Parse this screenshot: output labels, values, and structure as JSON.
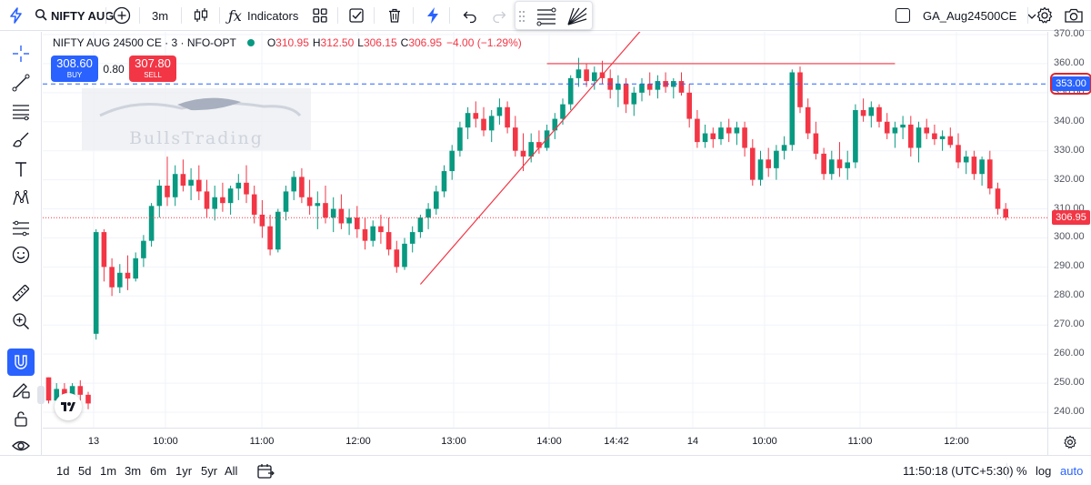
{
  "toolbar": {
    "symbol": "NIFTY AUG",
    "interval": "3m",
    "indicators_label": "Indicators",
    "layout_name": "GA_Aug24500CE"
  },
  "legend": {
    "symbol_text": "NIFTY AUG 24500 CE · 3 · NFO-OPT",
    "open_label": "O",
    "open": "310.95",
    "high_label": "H",
    "high": "312.50",
    "low_label": "L",
    "low": "306.15",
    "close_label": "C",
    "close": "306.95",
    "change": "−4.00 (−1.29%)"
  },
  "trade_panel": {
    "buy_price": "308.60",
    "buy_label": "BUY",
    "spread": "0.80",
    "sell_price": "307.80",
    "sell_label": "SELL"
  },
  "watermark": {
    "text": "BullsTrading"
  },
  "price_axis": {
    "ticks": [
      "370.00",
      "360.00",
      "350.00",
      "340.00",
      "330.00",
      "320.00",
      "310.00",
      "300.00",
      "290.00",
      "280.00",
      "270.00",
      "260.00",
      "250.00",
      "240.00"
    ],
    "crosshair_label": "353.00",
    "last_price_label": "306.95"
  },
  "time_axis": {
    "ticks": [
      {
        "label": "13",
        "kind": "day"
      },
      {
        "label": "10:00",
        "kind": "time"
      },
      {
        "label": "11:00",
        "kind": "time"
      },
      {
        "label": "12:00",
        "kind": "time"
      },
      {
        "label": "13:00",
        "kind": "time"
      },
      {
        "label": "14:00",
        "kind": "time"
      },
      {
        "label": "14:42",
        "kind": "time"
      },
      {
        "label": "14",
        "kind": "day"
      },
      {
        "label": "10:00",
        "kind": "time"
      },
      {
        "label": "11:00",
        "kind": "time"
      },
      {
        "label": "12:00",
        "kind": "time"
      }
    ]
  },
  "bottom_bar": {
    "ranges": [
      "1d",
      "5d",
      "1m",
      "3m",
      "6m",
      "1yr",
      "5yr",
      "All"
    ],
    "clock": "11:50:18 (UTC+5:30)",
    "percent_label": "%",
    "log_label": "log",
    "auto_label": "auto"
  },
  "colors": {
    "up": "#089981",
    "down": "#f23645",
    "accent": "#2962ff",
    "drawing": "#f23645",
    "crosshair": "#2962ff",
    "grid": "#f0f3fa"
  },
  "left_tools": [
    "crosshair-icon",
    "trend-line-icon",
    "fib-lines-icon",
    "brush-icon",
    "text-icon",
    "pattern-icon",
    "forecast-icon",
    "emoji-icon",
    "ruler-icon",
    "zoom-in-icon",
    "magnet-icon",
    "lock-drawing-icon",
    "lock-icon",
    "eye-icon"
  ],
  "chart_data": {
    "type": "candlestick",
    "ylim": [
      235,
      372
    ],
    "grid": true,
    "candles": [
      [
        252,
        252,
        243,
        244
      ],
      [
        244,
        250,
        242,
        248
      ],
      [
        248,
        250,
        244,
        245
      ],
      [
        245,
        250,
        243,
        249
      ],
      [
        249,
        251,
        244,
        246
      ],
      [
        246,
        247,
        241,
        243
      ],
      [
        267,
        303,
        265,
        302
      ],
      [
        302,
        303,
        285,
        290
      ],
      [
        290,
        293,
        280,
        283
      ],
      [
        283,
        291,
        281,
        288
      ],
      [
        288,
        294,
        282,
        286
      ],
      [
        286,
        295,
        285,
        293
      ],
      [
        293,
        301,
        290,
        299
      ],
      [
        299,
        312,
        297,
        311
      ],
      [
        311,
        320,
        307,
        318
      ],
      [
        318,
        328,
        311,
        314
      ],
      [
        314,
        325,
        311,
        322
      ],
      [
        322,
        327,
        316,
        318
      ],
      [
        318,
        324,
        313,
        320
      ],
      [
        320,
        325,
        313,
        316
      ],
      [
        316,
        320,
        307,
        310
      ],
      [
        310,
        318,
        306,
        314
      ],
      [
        314,
        319,
        309,
        312
      ],
      [
        312,
        318,
        308,
        317
      ],
      [
        317,
        322,
        313,
        319
      ],
      [
        319,
        325,
        312,
        315
      ],
      [
        315,
        318,
        305,
        308
      ],
      [
        308,
        313,
        300,
        304
      ],
      [
        304,
        308,
        294,
        296
      ],
      [
        296,
        310,
        295,
        309
      ],
      [
        309,
        318,
        306,
        316
      ],
      [
        316,
        323,
        313,
        321
      ],
      [
        321,
        324,
        312,
        314
      ],
      [
        314,
        320,
        308,
        311
      ],
      [
        311,
        316,
        303,
        312
      ],
      [
        312,
        318,
        305,
        307
      ],
      [
        307,
        314,
        302,
        310
      ],
      [
        310,
        315,
        303,
        305
      ],
      [
        305,
        310,
        301,
        307
      ],
      [
        307,
        311,
        300,
        303
      ],
      [
        303,
        307,
        296,
        299
      ],
      [
        299,
        306,
        297,
        304
      ],
      [
        304,
        308,
        298,
        302
      ],
      [
        302,
        307,
        294,
        296
      ],
      [
        296,
        299,
        288,
        290
      ],
      [
        290,
        300,
        289,
        298
      ],
      [
        298,
        304,
        295,
        302
      ],
      [
        302,
        308,
        300,
        307
      ],
      [
        307,
        312,
        303,
        310
      ],
      [
        310,
        318,
        308,
        316
      ],
      [
        316,
        325,
        314,
        323
      ],
      [
        323,
        332,
        320,
        330
      ],
      [
        330,
        340,
        328,
        338
      ],
      [
        338,
        345,
        334,
        343
      ],
      [
        343,
        347,
        338,
        341
      ],
      [
        341,
        345,
        335,
        337
      ],
      [
        337,
        344,
        333,
        342
      ],
      [
        342,
        348,
        339,
        345
      ],
      [
        345,
        347,
        336,
        338
      ],
      [
        338,
        342,
        328,
        330
      ],
      [
        330,
        336,
        323,
        328
      ],
      [
        328,
        336,
        326,
        333
      ],
      [
        333,
        337,
        329,
        331
      ],
      [
        331,
        339,
        330,
        337
      ],
      [
        337,
        343,
        334,
        341
      ],
      [
        341,
        348,
        339,
        346
      ],
      [
        346,
        356,
        344,
        355
      ],
      [
        355,
        362,
        352,
        358
      ],
      [
        358,
        360,
        352,
        354
      ],
      [
        354,
        359,
        351,
        357
      ],
      [
        357,
        361,
        353,
        355
      ],
      [
        355,
        358,
        348,
        351
      ],
      [
        351,
        356,
        345,
        353
      ],
      [
        353,
        355,
        343,
        346
      ],
      [
        346,
        352,
        342,
        350
      ],
      [
        350,
        355,
        347,
        353
      ],
      [
        353,
        357,
        349,
        351
      ],
      [
        351,
        356,
        348,
        354
      ],
      [
        354,
        357,
        350,
        352
      ],
      [
        352,
        355,
        348,
        354
      ],
      [
        354,
        357,
        349,
        350
      ],
      [
        350,
        353,
        338,
        341
      ],
      [
        341,
        344,
        331,
        333
      ],
      [
        333,
        339,
        331,
        336
      ],
      [
        336,
        338,
        331,
        334
      ],
      [
        334,
        340,
        332,
        338
      ],
      [
        338,
        341,
        333,
        336
      ],
      [
        336,
        340,
        332,
        338
      ],
      [
        338,
        340,
        328,
        331
      ],
      [
        331,
        334,
        318,
        320
      ],
      [
        320,
        330,
        318,
        327
      ],
      [
        327,
        331,
        321,
        324
      ],
      [
        324,
        332,
        320,
        330
      ],
      [
        330,
        335,
        327,
        332
      ],
      [
        332,
        358,
        330,
        357
      ],
      [
        357,
        359,
        343,
        345
      ],
      [
        345,
        348,
        334,
        336
      ],
      [
        336,
        340,
        327,
        329
      ],
      [
        329,
        331,
        320,
        322
      ],
      [
        322,
        330,
        320,
        327
      ],
      [
        327,
        333,
        321,
        324
      ],
      [
        324,
        330,
        320,
        326
      ],
      [
        326,
        346,
        324,
        344
      ],
      [
        344,
        348,
        340,
        342
      ],
      [
        342,
        347,
        338,
        345
      ],
      [
        345,
        346,
        338,
        340
      ],
      [
        340,
        343,
        334,
        336
      ],
      [
        336,
        340,
        331,
        338
      ],
      [
        338,
        342,
        334,
        339
      ],
      [
        339,
        342,
        328,
        331
      ],
      [
        331,
        340,
        326,
        338
      ],
      [
        338,
        341,
        334,
        336
      ],
      [
        336,
        339,
        332,
        334
      ],
      [
        334,
        337,
        330,
        335
      ],
      [
        335,
        338,
        331,
        332
      ],
      [
        332,
        336,
        324,
        326
      ],
      [
        326,
        330,
        322,
        328
      ],
      [
        328,
        330,
        320,
        322
      ],
      [
        322,
        328,
        318,
        327
      ],
      [
        327,
        330,
        315,
        317
      ],
      [
        317,
        319,
        308,
        310
      ],
      [
        310,
        312,
        306,
        307
      ]
    ],
    "drawings": [
      {
        "type": "trend_line",
        "from": {
          "candle": 47,
          "price": 284
        },
        "to": {
          "candle": 84,
          "price": 400
        }
      },
      {
        "type": "horizontal_segment",
        "price": 360,
        "from_candle": 63,
        "to_candle": 107
      }
    ],
    "crosshair_price": 353,
    "last_price": 306.95
  }
}
